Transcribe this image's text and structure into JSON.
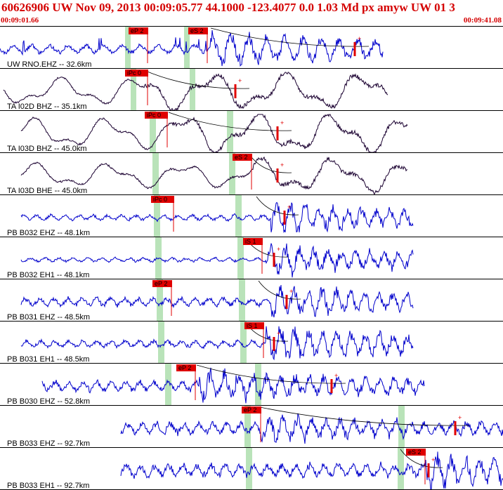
{
  "header": {
    "title": "60626906 UW Nov 09, 2013 00:09:05.77    44.1000 -123.4077  0.0 1.03 Md px amyw UW 01   3",
    "time_start": "00:09:01.66",
    "time_end": "00:09:41.08"
  },
  "colors": {
    "header_text": "#d40000",
    "trace_blue": "#0000cc",
    "trace_dark": "#1a0030",
    "pick_red": "#e00000",
    "window_green": "#b9e3b9",
    "divider": "#000000"
  },
  "traces": [
    {
      "label": "UW RNO.EHZ -- 32.6km",
      "color": "blue",
      "picks": [
        {
          "label": "eP 2"
        },
        {
          "label": "eS 2"
        }
      ]
    },
    {
      "label": "TA I02D BHZ -- 35.1km",
      "color": "dark",
      "picks": [
        {
          "label": "iPc 0"
        }
      ]
    },
    {
      "label": "TA I03D BHZ -- 45.0km",
      "color": "dark",
      "picks": [
        {
          "label": "iPc 0"
        }
      ]
    },
    {
      "label": "TA I03D BHE -- 45.0km",
      "color": "dark",
      "picks": [
        {
          "label": "eS 2"
        }
      ]
    },
    {
      "label": "PB B032 EHZ -- 48.1km",
      "color": "blue",
      "picks": [
        {
          "label": "iPc 0"
        }
      ]
    },
    {
      "label": "PB B032 EH1 -- 48.1km",
      "color": "blue",
      "picks": [
        {
          "label": "iS 1"
        }
      ]
    },
    {
      "label": "PB B031 EHZ -- 48.5km",
      "color": "blue",
      "picks": [
        {
          "label": "eP 2"
        }
      ]
    },
    {
      "label": "PB B031 EH1 -- 48.5km",
      "color": "blue",
      "picks": [
        {
          "label": "iS 1"
        }
      ]
    },
    {
      "label": "PB B030 EHZ -- 52.8km",
      "color": "blue",
      "picks": [
        {
          "label": "eP 2"
        }
      ]
    },
    {
      "label": "PB B033 EHZ -- 92.7km",
      "color": "blue",
      "picks": [
        {
          "label": "eP 2"
        }
      ]
    },
    {
      "label": "PB B033 EH1 -- 92.7km",
      "color": "blue",
      "picks": [
        {
          "label": "eS 2"
        }
      ]
    }
  ]
}
